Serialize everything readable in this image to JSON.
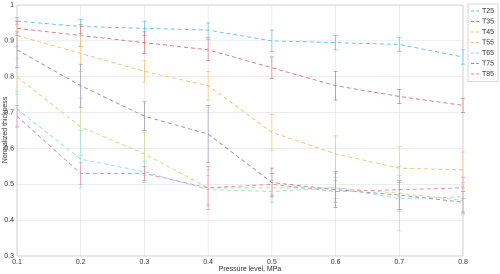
{
  "chart_data": {
    "type": "line",
    "x_label": "Pressure level, MPa",
    "y_label": "Normalized thickness",
    "x": [
      0.1,
      0.2,
      0.3,
      0.4,
      0.5,
      0.6,
      0.7,
      0.8
    ],
    "xlim": [
      0.1,
      0.8
    ],
    "xticks": [
      0.1,
      0.2,
      0.3,
      0.4,
      0.5,
      0.6,
      0.7,
      0.8
    ],
    "ylim": [
      0.3,
      1
    ],
    "yticks": [
      0.3,
      0.4,
      0.5,
      0.6,
      0.7,
      0.8,
      0.9,
      1
    ],
    "grid": true,
    "legend": "top-right",
    "series": [
      {
        "name": "T25",
        "color": "#5bc0de",
        "values": [
          0.955,
          0.94,
          0.935,
          0.93,
          0.9,
          0.895,
          0.89,
          0.855
        ],
        "errors": [
          0.01,
          0.02,
          0.02,
          0.02,
          0.03,
          0.02,
          0.02,
          0.02
        ]
      },
      {
        "name": "T35",
        "color": "#d9707a",
        "values": [
          0.935,
          0.915,
          0.895,
          0.875,
          0.825,
          0.775,
          0.745,
          0.72
        ],
        "errors": [
          0.02,
          0.03,
          0.03,
          0.03,
          0.03,
          0.04,
          0.02,
          0.02
        ]
      },
      {
        "name": "T45",
        "color": "#f3c06a",
        "values": [
          0.915,
          0.865,
          0.815,
          0.775,
          0.645,
          0.585,
          0.545,
          0.54
        ],
        "errors": [
          0.03,
          0.05,
          0.03,
          0.04,
          0.05,
          0.05,
          0.06,
          0.05
        ]
      },
      {
        "name": "T55",
        "color": "#c6d98a",
        "values": [
          0.8,
          0.66,
          0.585,
          0.49,
          0.49,
          0.49,
          0.475,
          0.455
        ],
        "errors": [
          0.05,
          0.08,
          0.06,
          0.05,
          0.04,
          0.04,
          0.05,
          0.04
        ]
      },
      {
        "name": "T65",
        "color": "#8ee0d8",
        "values": [
          0.71,
          0.57,
          0.535,
          0.485,
          0.48,
          0.49,
          0.46,
          0.465
        ],
        "errors": [
          0.05,
          0.08,
          0.03,
          0.04,
          0.03,
          0.03,
          0.09,
          0.04
        ]
      },
      {
        "name": "T75",
        "color": "#9a8fb0",
        "values": [
          0.875,
          0.775,
          0.69,
          0.64,
          0.505,
          0.485,
          0.47,
          0.45
        ],
        "errors": [
          0.05,
          0.06,
          0.04,
          0.08,
          0.04,
          0.05,
          0.04,
          0.03
        ]
      },
      {
        "name": "T85",
        "color": "#e58aa5",
        "values": [
          0.69,
          0.53,
          0.53,
          0.49,
          0.5,
          0.48,
          0.485,
          0.49
        ],
        "errors": [
          0.03,
          0.03,
          0.02,
          0.06,
          0.03,
          0.03,
          0.02,
          0.03
        ]
      }
    ]
  }
}
